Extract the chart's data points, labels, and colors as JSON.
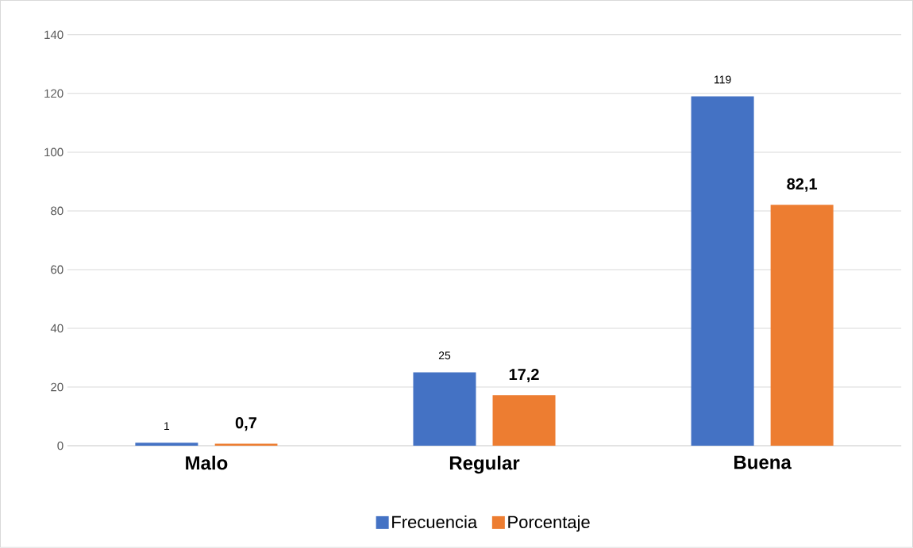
{
  "chart_data": {
    "type": "bar",
    "categories": [
      "Malo",
      "Regular",
      "Buena"
    ],
    "series": [
      {
        "name": "Frecuencia",
        "color": "#4472c4",
        "values": [
          1,
          25,
          119
        ],
        "value_labels": [
          "1",
          "25",
          "119"
        ]
      },
      {
        "name": "Porcentaje",
        "color": "#ed7d31",
        "values": [
          0.7,
          17.2,
          82.1
        ],
        "value_labels": [
          "0,7",
          "17,2",
          "82,1"
        ]
      }
    ],
    "ylim": [
      0,
      140
    ],
    "yticks": [
      0,
      20,
      40,
      60,
      80,
      100,
      120,
      140
    ],
    "grid": "y",
    "legend": "bottom"
  }
}
